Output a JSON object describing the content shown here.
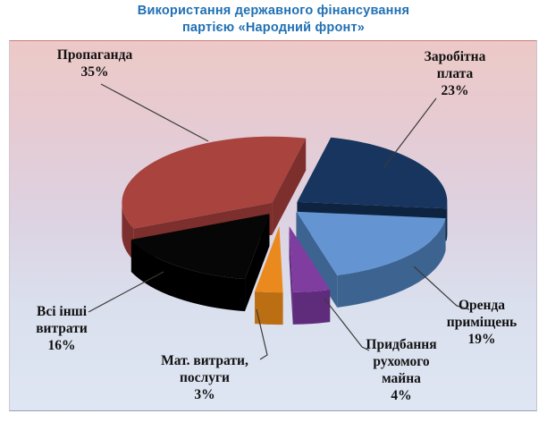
{
  "title": {
    "line1": "Використання державного фінансування",
    "line2": "партією «Народний фронт»",
    "color": "#2070B4"
  },
  "chart_data": {
    "type": "pie",
    "style": "3d-exploded",
    "title": "Використання державного фінансування партією «Народний фронт»",
    "unit": "%",
    "start_angle_deg": 13,
    "direction": "clockwise",
    "legend": "none",
    "slices": [
      {
        "key": "salary",
        "name": "Заробітна плата",
        "value": 23,
        "label_text": "Заробітна\nплата\n23%",
        "color_top": "#17355E",
        "color_side": "#0D2340"
      },
      {
        "key": "rent-premises",
        "name": "Оренда приміщень",
        "value": 19,
        "label_text": "Оренда\nприміщень\n19%",
        "color_top": "#6495D2",
        "color_side": "#3D6490"
      },
      {
        "key": "movable-property",
        "name": "Придбання рухомого майна",
        "value": 4,
        "label_text": "Придбання\nрухомого\nмайна\n4%",
        "color_top": "#7F3DA0",
        "color_side": "#5F2B7B"
      },
      {
        "key": "material-services",
        "name": "Мат. витрати, послуги",
        "value": 3,
        "label_text": "Мат. витрати,\nпослуги\n3%",
        "color_top": "#E9891E",
        "color_side": "#BC6E12"
      },
      {
        "key": "other-expenses",
        "name": "Всі інші витрати",
        "value": 16,
        "label_text": "Всі інші\nвитрати\n16%",
        "color_top": "#060606",
        "color_side": "#000000"
      },
      {
        "key": "propaganda",
        "name": "Пропаганда",
        "value": 35,
        "label_text": "Пропаганда\n35%",
        "color_top": "#A8433E",
        "color_side": "#7C2F2C"
      }
    ],
    "plot_background": [
      "#EDC9C7",
      "#DDD2E2",
      "#DFE6F3"
    ],
    "leader_line_color": "#3A3A3A"
  }
}
